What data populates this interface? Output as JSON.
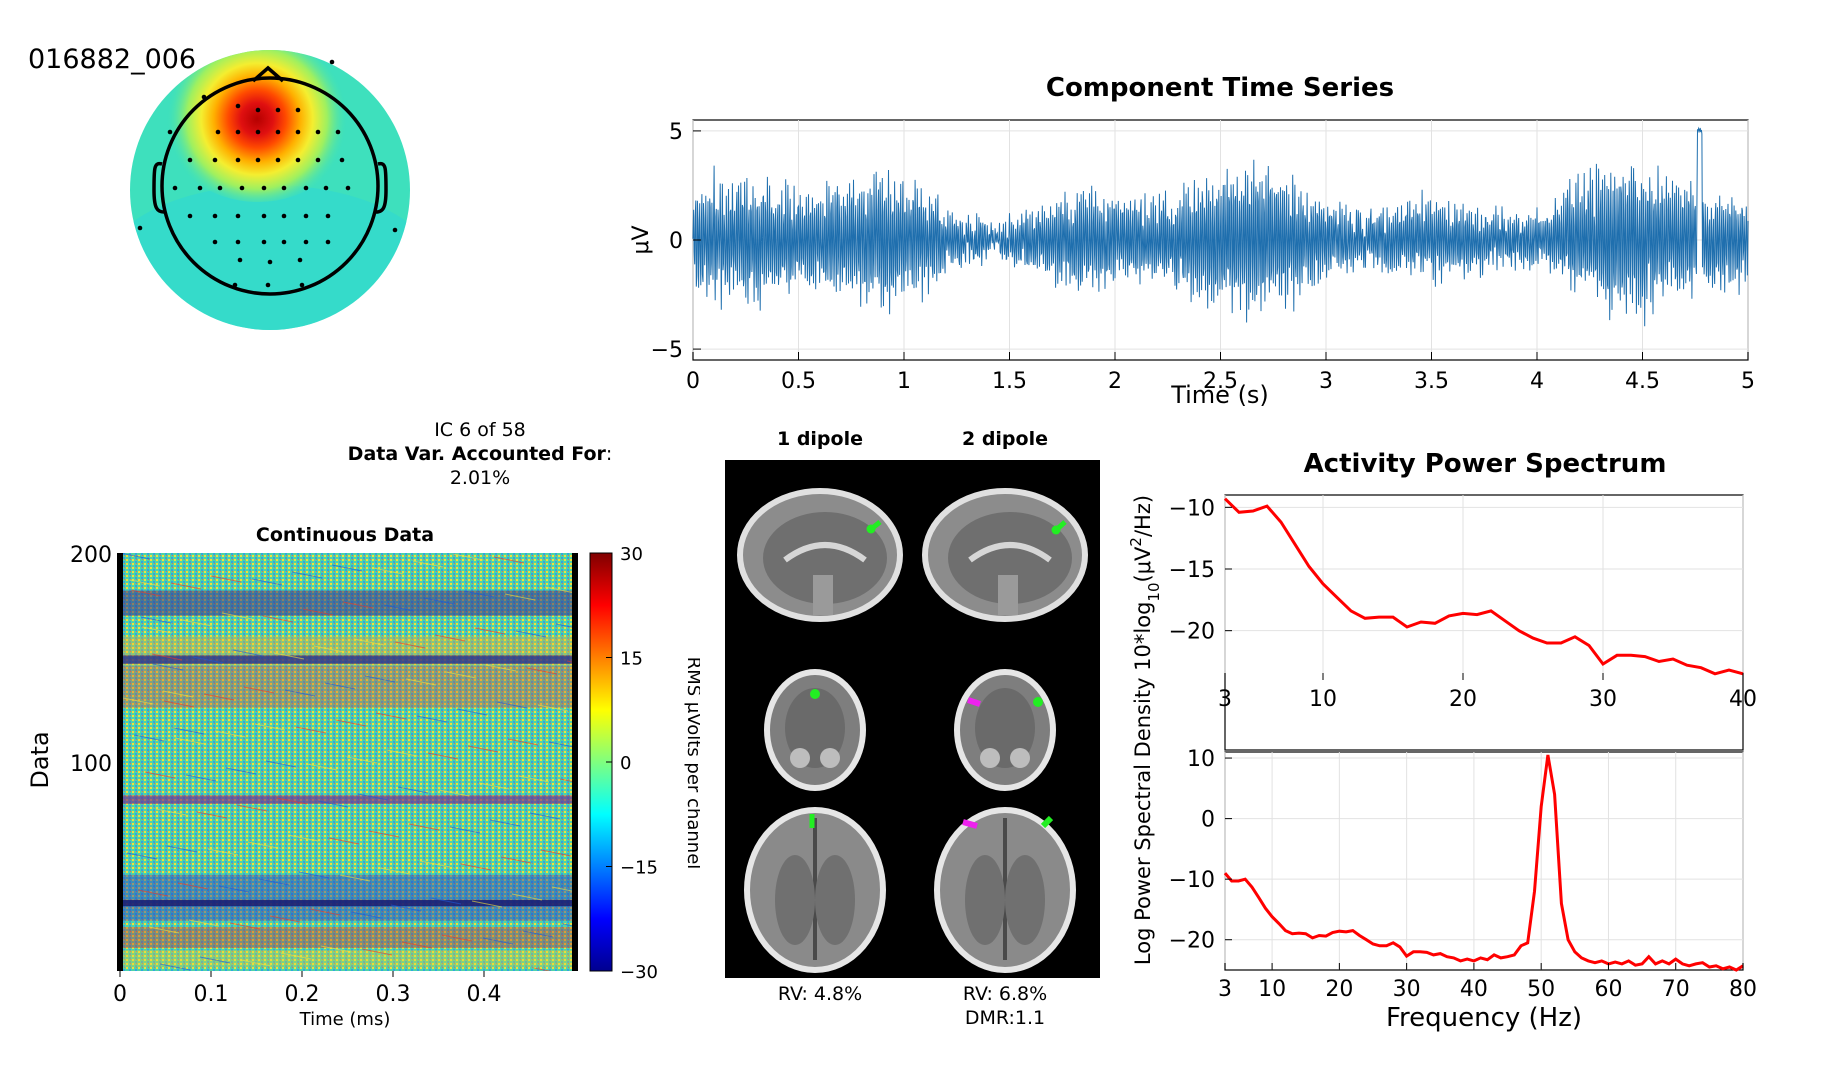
{
  "header": {
    "id_label": "016882_006"
  },
  "ic_info": {
    "ic_label": "IC 6 of 58",
    "var_label": "Data Var. Accounted For",
    "var_colon": ":",
    "var_value": "2.01%"
  },
  "dipole": {
    "col1_title": "1 dipole",
    "col2_title": "2 dipole",
    "rv1": "RV: 4.8%",
    "rv2": "RV: 6.8%",
    "dmr2": "DMR:1.1"
  },
  "colors": {
    "line_blue": "#1f6fae",
    "spectrum_red": "#ff0000",
    "topo_red": "#c40000"
  },
  "chart_data": [
    {
      "type": "line",
      "title": "Component Time Series",
      "xlabel": "Time (s)",
      "ylabel": "μV",
      "xlim": [
        0,
        5
      ],
      "ylim": [
        -5.5,
        5.5
      ],
      "xticks": [
        "0",
        "0.5",
        "1",
        "1.5",
        "2",
        "2.5",
        "3",
        "3.5",
        "4",
        "4.5",
        "5"
      ],
      "yticks": [
        "5",
        "0",
        "-5"
      ],
      "grid": true,
      "series": [
        {
          "description": "oscillatory component signal, amplitude about ±3 μV, peak 5.4 μV near 4.77 s"
        }
      ]
    },
    {
      "type": "heatmap",
      "title": "Continuous Data",
      "xlabel": "Time (ms)",
      "ylabel": "Data",
      "xticks": [
        "0",
        "0.1",
        "0.2",
        "0.3",
        "0.4"
      ],
      "yticks": [
        "200",
        "100"
      ],
      "colorbar": {
        "label": "RMS μVolts per channel",
        "ticks": [
          "30",
          "15",
          "0",
          "-15",
          "-30"
        ],
        "range": [
          -30,
          30
        ]
      }
    },
    {
      "type": "line",
      "title": "Activity Power Spectrum",
      "ylabel": "Log Power Spectral Density 10*log10(μV²/Hz)",
      "xlim": [
        3,
        40
      ],
      "ylim": [
        -24,
        -9
      ],
      "xticks": [
        "3",
        "10",
        "20",
        "30",
        "40"
      ],
      "yticks": [
        "-10",
        "-15",
        "-20"
      ],
      "series": [
        {
          "color": "#ff0000",
          "x": [
            3,
            4,
            5,
            6,
            7,
            8,
            9,
            10,
            11,
            12,
            13,
            14,
            15,
            16,
            17,
            18,
            19,
            20,
            21,
            22,
            23,
            24,
            25,
            26,
            27,
            28,
            29,
            30,
            31,
            32,
            33,
            34,
            35,
            36,
            37,
            38,
            39,
            40
          ],
          "y": [
            -9.3,
            -10.4,
            -10.3,
            -9.9,
            -11.2,
            -13.0,
            -14.8,
            -16.2,
            -17.3,
            -18.4,
            -19.0,
            -18.9,
            -18.9,
            -19.7,
            -19.3,
            -19.4,
            -18.8,
            -18.6,
            -18.7,
            -18.4,
            -19.2,
            -20.0,
            -20.6,
            -21.0,
            -21.0,
            -20.5,
            -21.2,
            -22.7,
            -22.0,
            -22.0,
            -22.1,
            -22.5,
            -22.3,
            -22.8,
            -23.0,
            -23.5,
            -23.2,
            -23.5
          ]
        }
      ]
    },
    {
      "type": "line",
      "xlabel": "Frequency (Hz)",
      "xlim": [
        3,
        80
      ],
      "ylim": [
        -25,
        11
      ],
      "xticks": [
        "3",
        "10",
        "20",
        "30",
        "40",
        "50",
        "60",
        "70",
        "80"
      ],
      "yticks": [
        "10",
        "0",
        "-10",
        "-20"
      ],
      "series": [
        {
          "color": "#ff0000",
          "x": [
            3,
            4,
            5,
            6,
            7,
            8,
            9,
            10,
            11,
            12,
            13,
            14,
            15,
            16,
            17,
            18,
            19,
            20,
            21,
            22,
            23,
            24,
            25,
            26,
            27,
            28,
            29,
            30,
            31,
            32,
            33,
            34,
            35,
            36,
            37,
            38,
            39,
            40,
            41,
            42,
            43,
            44,
            45,
            46,
            47,
            48,
            49,
            50,
            51,
            52,
            53,
            54,
            55,
            56,
            57,
            58,
            59,
            60,
            61,
            62,
            63,
            64,
            65,
            66,
            67,
            68,
            69,
            70,
            71,
            72,
            73,
            74,
            75,
            76,
            77,
            78,
            79,
            80
          ],
          "y": [
            -9,
            -10.3,
            -10.3,
            -10,
            -11.3,
            -13,
            -14.8,
            -16.2,
            -17.3,
            -18.5,
            -19,
            -18.9,
            -19,
            -19.7,
            -19.3,
            -19.4,
            -18.8,
            -18.6,
            -18.7,
            -18.5,
            -19.3,
            -20,
            -20.7,
            -21,
            -21,
            -20.5,
            -21.2,
            -22.7,
            -22,
            -22,
            -22.1,
            -22.5,
            -22.3,
            -22.8,
            -23,
            -23.5,
            -23.2,
            -23.5,
            -23,
            -23.3,
            -22.5,
            -23,
            -22.8,
            -22.5,
            -21,
            -20.5,
            -12,
            2,
            10.5,
            4,
            -14,
            -20,
            -22,
            -23,
            -23.5,
            -23.8,
            -23.5,
            -24,
            -23.7,
            -24,
            -23.5,
            -24.2,
            -24,
            -22.8,
            -24,
            -23.5,
            -24,
            -23.2,
            -24,
            -24.3,
            -24,
            -23.8,
            -24.5,
            -24.3,
            -24.8,
            -24.5,
            -25,
            -24.3
          ]
        }
      ]
    }
  ]
}
